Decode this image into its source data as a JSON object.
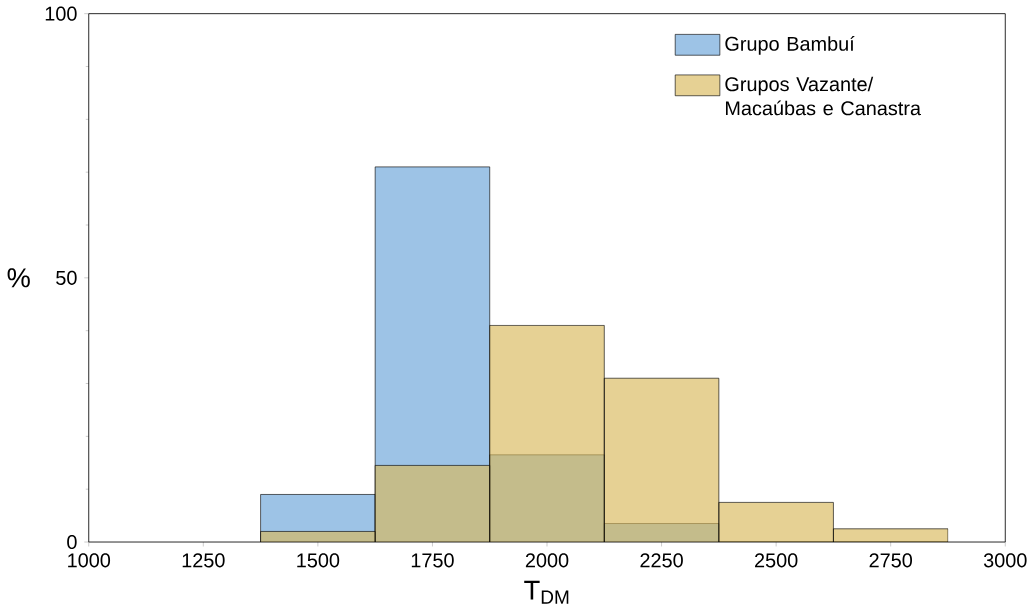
{
  "chart_data": {
    "type": "histogram",
    "xlabel": "T$_{DM}$",
    "ylabel": "%",
    "bins": [
      1375,
      1625,
      1875,
      2125,
      2375,
      2625,
      2875
    ],
    "series": [
      {
        "name": "Grupo Bambuí",
        "color": "#9dc3e6",
        "values": [
          9,
          71,
          16.5,
          3.5,
          0,
          0
        ]
      },
      {
        "name": "Grupos Vazante/ Macaúbas e Canastra",
        "color": "#d9b95b",
        "values": [
          2,
          14.5,
          41,
          31,
          7.5,
          2.5
        ]
      }
    ],
    "xlim": [
      1000,
      3000
    ],
    "xticks": [
      1000,
      1250,
      1500,
      1750,
      2000,
      2250,
      2500,
      2750,
      3000
    ],
    "ylim": [
      0,
      100
    ],
    "yticks": [
      0,
      50,
      100
    ],
    "grid": false,
    "legend": "top right"
  }
}
